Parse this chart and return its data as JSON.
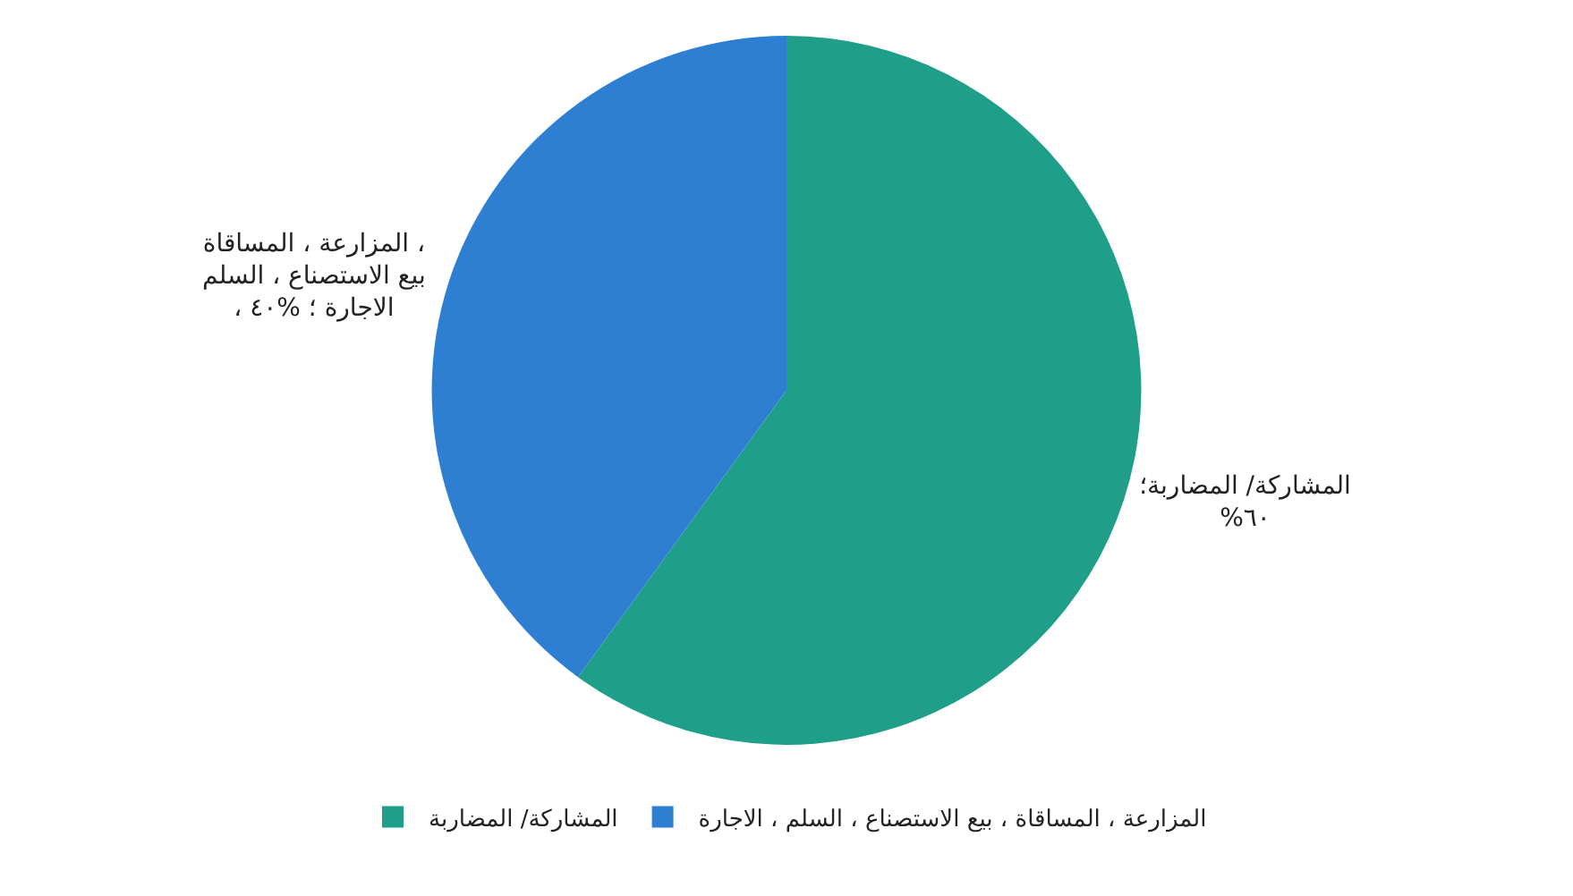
{
  "chart_data": {
    "type": "pie",
    "categories": [
      "المشاركة/ المضاربة",
      "المزارعة ، المساقاة ، بيع الاستصناع ، السلم ، الاجارة"
    ],
    "values": [
      60,
      40
    ],
    "colors": [
      "#1f9e8a",
      "#2e7fd2"
    ],
    "value_labels": [
      "المشاركة/ المضاربة؛ %٦٠",
      "المزارعة ، المساقاة ، بيع الاستصناع ، السلم ، الاجارة ؛ %٤٠"
    ],
    "legend": "bottom"
  }
}
